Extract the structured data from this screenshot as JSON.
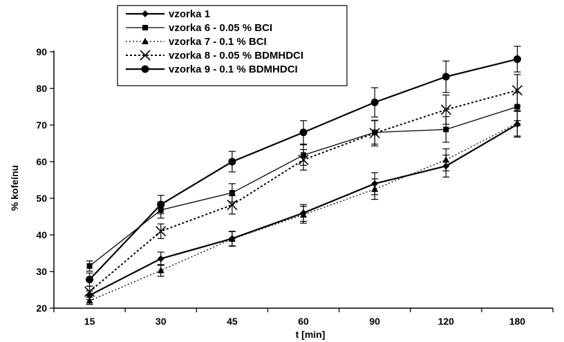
{
  "chart_data": {
    "type": "line",
    "title": "",
    "xlabel": "t [min]",
    "ylabel": "% kofeínu",
    "categories": [
      "15",
      "30",
      "45",
      "60",
      "90",
      "120",
      "180"
    ],
    "ylim": [
      20,
      90
    ],
    "yticks": [
      20,
      30,
      40,
      50,
      60,
      70,
      80,
      90
    ],
    "legend": "top-left",
    "grid": false,
    "series": [
      {
        "name": "vzorka 1",
        "values": [
          23.5,
          33.5,
          39.0,
          46.0,
          54.0,
          58.8,
          70.2
        ],
        "errors": [
          1.2,
          1.8,
          2.0,
          2.3,
          3.0,
          3.0,
          3.5
        ],
        "marker": "diamond",
        "dash": "solid",
        "width": 2.2
      },
      {
        "name": "vzorka 6 - 0.05 % BCI",
        "values": [
          31.5,
          46.8,
          51.5,
          61.8,
          68.0,
          68.8,
          75.0
        ],
        "errors": [
          1.4,
          2.2,
          2.5,
          2.8,
          3.2,
          3.5,
          3.8
        ],
        "marker": "square",
        "dash": "solid",
        "width": 1.3
      },
      {
        "name": "vzorka 7 - 0.1 % BCI",
        "values": [
          22.0,
          30.3,
          38.9,
          45.5,
          52.5,
          60.5,
          70.5
        ],
        "errors": [
          1.0,
          1.6,
          2.0,
          2.3,
          2.8,
          3.0,
          3.5
        ],
        "marker": "triangle",
        "dash": "2,3",
        "width": 1.3
      },
      {
        "name": "vzorka 8 - 0.05 % BDMHDCI",
        "values": [
          24.5,
          41.0,
          48.2,
          60.5,
          67.8,
          74.2,
          79.5
        ],
        "errors": [
          1.5,
          2.0,
          2.5,
          2.8,
          3.5,
          4.0,
          4.3
        ],
        "marker": "x",
        "dash": "3,3",
        "width": 2.0
      },
      {
        "name": "vzorka 9 - 0.1 % BDMHDCI",
        "values": [
          27.8,
          48.3,
          60.0,
          68.0,
          76.2,
          83.2,
          88.0
        ],
        "errors": [
          1.8,
          2.5,
          2.8,
          3.2,
          4.0,
          4.3,
          3.5
        ],
        "marker": "circle",
        "dash": "solid",
        "width": 2.2
      }
    ]
  }
}
